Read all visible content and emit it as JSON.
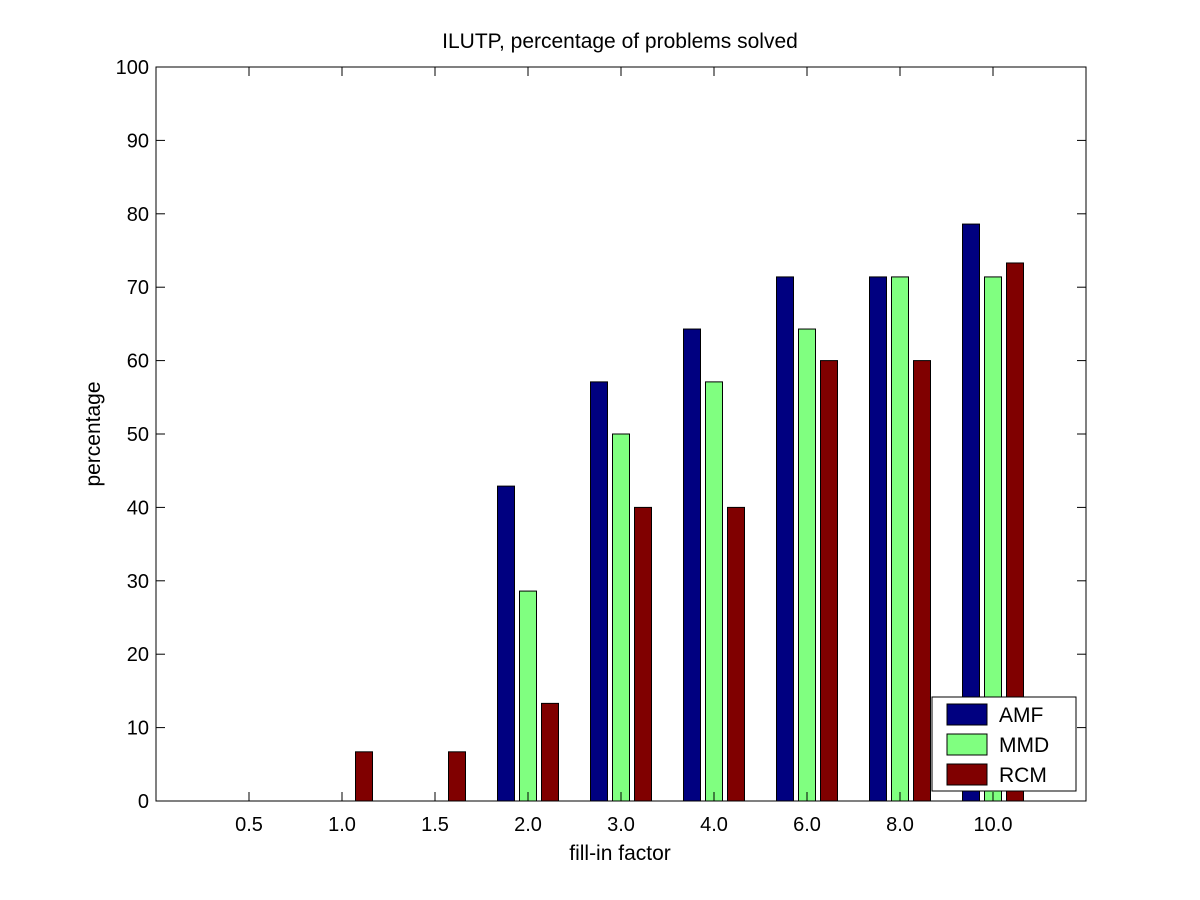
{
  "chart_data": {
    "type": "bar",
    "title": "ILUTP, percentage of problems solved",
    "xlabel": "fill-in factor",
    "ylabel": "percentage",
    "categories": [
      "0.5",
      "1.0",
      "1.5",
      "2.0",
      "3.0",
      "4.0",
      "6.0",
      "8.0",
      "10.0"
    ],
    "ylim": [
      0,
      100
    ],
    "yticks": [
      0,
      10,
      20,
      30,
      40,
      50,
      60,
      70,
      80,
      90,
      100
    ],
    "grid": false,
    "legend_position": "bottom-right",
    "series": [
      {
        "name": "AMF",
        "color": "#000080",
        "values": [
          0,
          0,
          0,
          42.9,
          57.1,
          64.3,
          71.4,
          71.4,
          78.6
        ]
      },
      {
        "name": "MMD",
        "color": "#80ff80",
        "values": [
          0,
          0,
          0,
          28.6,
          50.0,
          57.1,
          64.3,
          71.4,
          71.4
        ]
      },
      {
        "name": "RCM",
        "color": "#800000",
        "values": [
          0,
          6.7,
          6.7,
          13.3,
          40.0,
          40.0,
          60.0,
          60.0,
          73.3
        ]
      }
    ]
  }
}
